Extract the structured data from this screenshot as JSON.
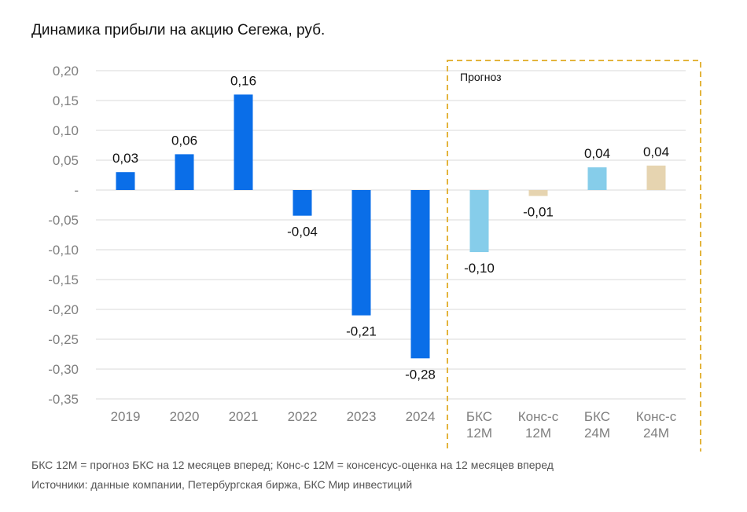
{
  "chart_data": {
    "type": "bar",
    "title": "Динамика прибыли на акцию Сегежа, руб.",
    "xlabel": "",
    "ylabel": "",
    "ylim": [
      -0.35,
      0.2
    ],
    "y_tick_labels": [
      "0,20",
      "0,15",
      "0,10",
      "0,05",
      "-",
      "-0,05",
      "-0,10",
      "-0,15",
      "-0,20",
      "-0,25",
      "-0,30",
      "-0,35"
    ],
    "y_ticks": [
      0.2,
      0.15,
      0.1,
      0.05,
      0,
      -0.05,
      -0.1,
      -0.15,
      -0.2,
      -0.25,
      -0.3,
      -0.35
    ],
    "grid": true,
    "categories": [
      {
        "line1": "2019",
        "line2": ""
      },
      {
        "line1": "2020",
        "line2": ""
      },
      {
        "line1": "2021",
        "line2": ""
      },
      {
        "line1": "2022",
        "line2": ""
      },
      {
        "line1": "2023",
        "line2": ""
      },
      {
        "line1": "2024",
        "line2": ""
      },
      {
        "line1": "БКС",
        "line2": "12M"
      },
      {
        "line1": "Конс-с",
        "line2": "12M"
      },
      {
        "line1": "БКС",
        "line2": "24M"
      },
      {
        "line1": "Конс-с",
        "line2": "24M"
      }
    ],
    "values": [
      0.03,
      0.06,
      0.16,
      -0.043,
      -0.21,
      -0.282,
      -0.104,
      -0.01,
      0.038,
      0.041
    ],
    "data_labels": [
      "0,03",
      "0,06",
      "0,16",
      "-0,04",
      "-0,21",
      "-0,28",
      "-0,10",
      "-0,01",
      "0,04",
      "0,04"
    ],
    "bar_colors": [
      "#0a6ee8",
      "#0a6ee8",
      "#0a6ee8",
      "#0a6ee8",
      "#0a6ee8",
      "#0a6ee8",
      "#86cdea",
      "#e6d4b0",
      "#86cdea",
      "#e6d4b0"
    ],
    "forecast_box": {
      "label": "Прогноз",
      "start_index": 6,
      "border_color": "#e3b43c"
    }
  },
  "footnotes": {
    "line1": "БКС 12М = прогноз БКС на 12 месяцев вперед; Конс-с 12M = консенсус-оценка на 12 месяцев вперед",
    "line2": "Источники: данные компании, Петербургская биржа, БКС Мир инвестиций"
  },
  "colors": {
    "grid": "#d9d9d9",
    "axis_text": "#7f7f7f",
    "label_text": "#111111"
  }
}
